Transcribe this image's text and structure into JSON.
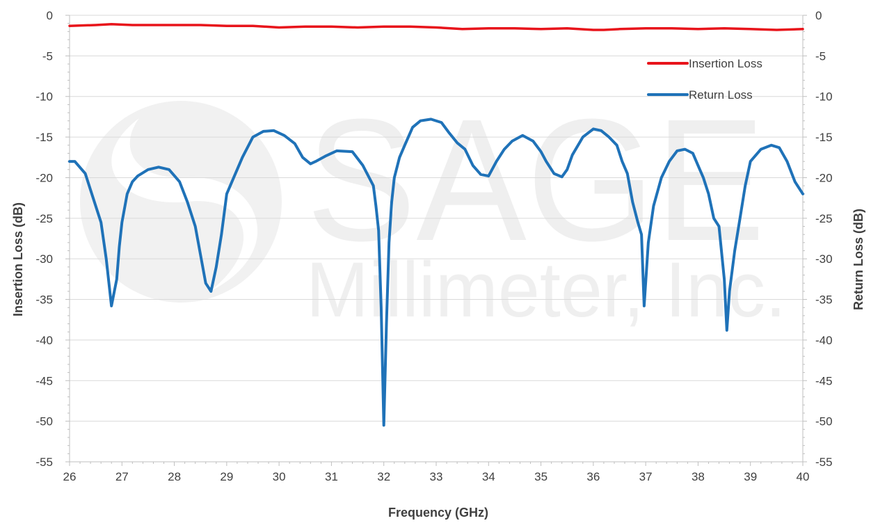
{
  "watermark": {
    "line1": "SAGE",
    "line2": "Millimeter, Inc."
  },
  "chart_data": {
    "type": "line",
    "title": "",
    "xlabel": "Frequency (GHz)",
    "ylabel": "Insertion Loss (dB)",
    "y2label": "Return Loss (dB)",
    "xlim": [
      26,
      40
    ],
    "ylim": [
      -55,
      0
    ],
    "y2lim": [
      -55,
      0
    ],
    "xticks": [
      26,
      27,
      28,
      29,
      30,
      31,
      32,
      33,
      34,
      35,
      36,
      37,
      38,
      39,
      40
    ],
    "yticks": [
      0,
      -5,
      -10,
      -15,
      -20,
      -25,
      -30,
      -35,
      -40,
      -45,
      -50,
      -55
    ],
    "grid": "horizontal",
    "legend_position": "top-right",
    "series": [
      {
        "name": "Insertion Loss",
        "color": "#e8141b",
        "x": [
          26,
          26.5,
          26.8,
          27.2,
          27.8,
          28.5,
          29,
          29.5,
          30,
          30.5,
          31,
          31.5,
          32,
          32.5,
          33,
          33.5,
          34,
          34.5,
          35,
          35.5,
          36,
          36.2,
          36.5,
          37,
          37.5,
          38,
          38.5,
          39,
          39.5,
          40
        ],
        "values": [
          -1.3,
          -1.2,
          -1.1,
          -1.2,
          -1.2,
          -1.2,
          -1.3,
          -1.3,
          -1.5,
          -1.4,
          -1.4,
          -1.5,
          -1.4,
          -1.4,
          -1.5,
          -1.7,
          -1.6,
          -1.6,
          -1.7,
          -1.6,
          -1.8,
          -1.8,
          -1.7,
          -1.6,
          -1.6,
          -1.7,
          -1.6,
          -1.7,
          -1.8,
          -1.7
        ]
      },
      {
        "name": "Return Loss",
        "color": "#1f72b8",
        "x": [
          26,
          26.1,
          26.3,
          26.4,
          26.5,
          26.6,
          26.7,
          26.8,
          26.9,
          26.95,
          27.0,
          27.1,
          27.2,
          27.3,
          27.5,
          27.7,
          27.9,
          28.1,
          28.25,
          28.4,
          28.5,
          28.6,
          28.7,
          28.8,
          28.9,
          29.0,
          29.1,
          29.2,
          29.3,
          29.5,
          29.7,
          29.9,
          30.1,
          30.3,
          30.45,
          30.6,
          30.7,
          30.9,
          31.1,
          31.4,
          31.6,
          31.8,
          31.85,
          31.9,
          31.95,
          32.0,
          32.05,
          32.1,
          32.15,
          32.2,
          32.3,
          32.4,
          32.55,
          32.7,
          32.9,
          33.1,
          33.25,
          33.4,
          33.55,
          33.7,
          33.85,
          34.0,
          34.15,
          34.3,
          34.45,
          34.65,
          34.85,
          35.0,
          35.1,
          35.25,
          35.4,
          35.5,
          35.6,
          35.8,
          36.0,
          36.15,
          36.3,
          36.45,
          36.55,
          36.65,
          36.75,
          36.85,
          36.92,
          36.97,
          37.05,
          37.15,
          37.3,
          37.45,
          37.6,
          37.75,
          37.9,
          38.0,
          38.1,
          38.2,
          38.3,
          38.4,
          38.5,
          38.55,
          38.6,
          38.7,
          38.8,
          38.9,
          39.0,
          39.2,
          39.4,
          39.55,
          39.7,
          39.85,
          40.0
        ],
        "values": [
          -18.0,
          -18.0,
          -19.5,
          -21.5,
          -23.5,
          -25.5,
          -30.0,
          -35.8,
          -32.5,
          -28.5,
          -25.5,
          -22.0,
          -20.5,
          -19.8,
          -19.0,
          -18.7,
          -19.0,
          -20.5,
          -23.0,
          -26.0,
          -29.5,
          -33.0,
          -34.0,
          -31.0,
          -27.0,
          -22.0,
          -20.5,
          -19.0,
          -17.5,
          -15.0,
          -14.3,
          -14.2,
          -14.8,
          -15.8,
          -17.5,
          -18.3,
          -18.0,
          -17.3,
          -16.7,
          -16.8,
          -18.5,
          -21.0,
          -23.5,
          -26.5,
          -36.0,
          -50.5,
          -38.0,
          -28.0,
          -23.0,
          -20.0,
          -17.5,
          -16.0,
          -13.8,
          -13.0,
          -12.8,
          -13.2,
          -14.5,
          -15.7,
          -16.5,
          -18.5,
          -19.6,
          -19.8,
          -18.0,
          -16.5,
          -15.5,
          -14.8,
          -15.5,
          -16.8,
          -18.0,
          -19.5,
          -19.9,
          -19.0,
          -17.2,
          -15.0,
          -14.0,
          -14.2,
          -15.0,
          -16.0,
          -18.0,
          -19.5,
          -23.0,
          -25.5,
          -27.0,
          -35.8,
          -28.0,
          -23.5,
          -20.0,
          -18.0,
          -16.7,
          -16.5,
          -17.0,
          -18.5,
          -20.0,
          -22.0,
          -25.0,
          -26.0,
          -32.5,
          -38.8,
          -34.0,
          -29.0,
          -25.0,
          -21.0,
          -18.0,
          -16.5,
          -16.0,
          -16.3,
          -18.0,
          -20.5,
          -22.0
        ]
      }
    ]
  }
}
